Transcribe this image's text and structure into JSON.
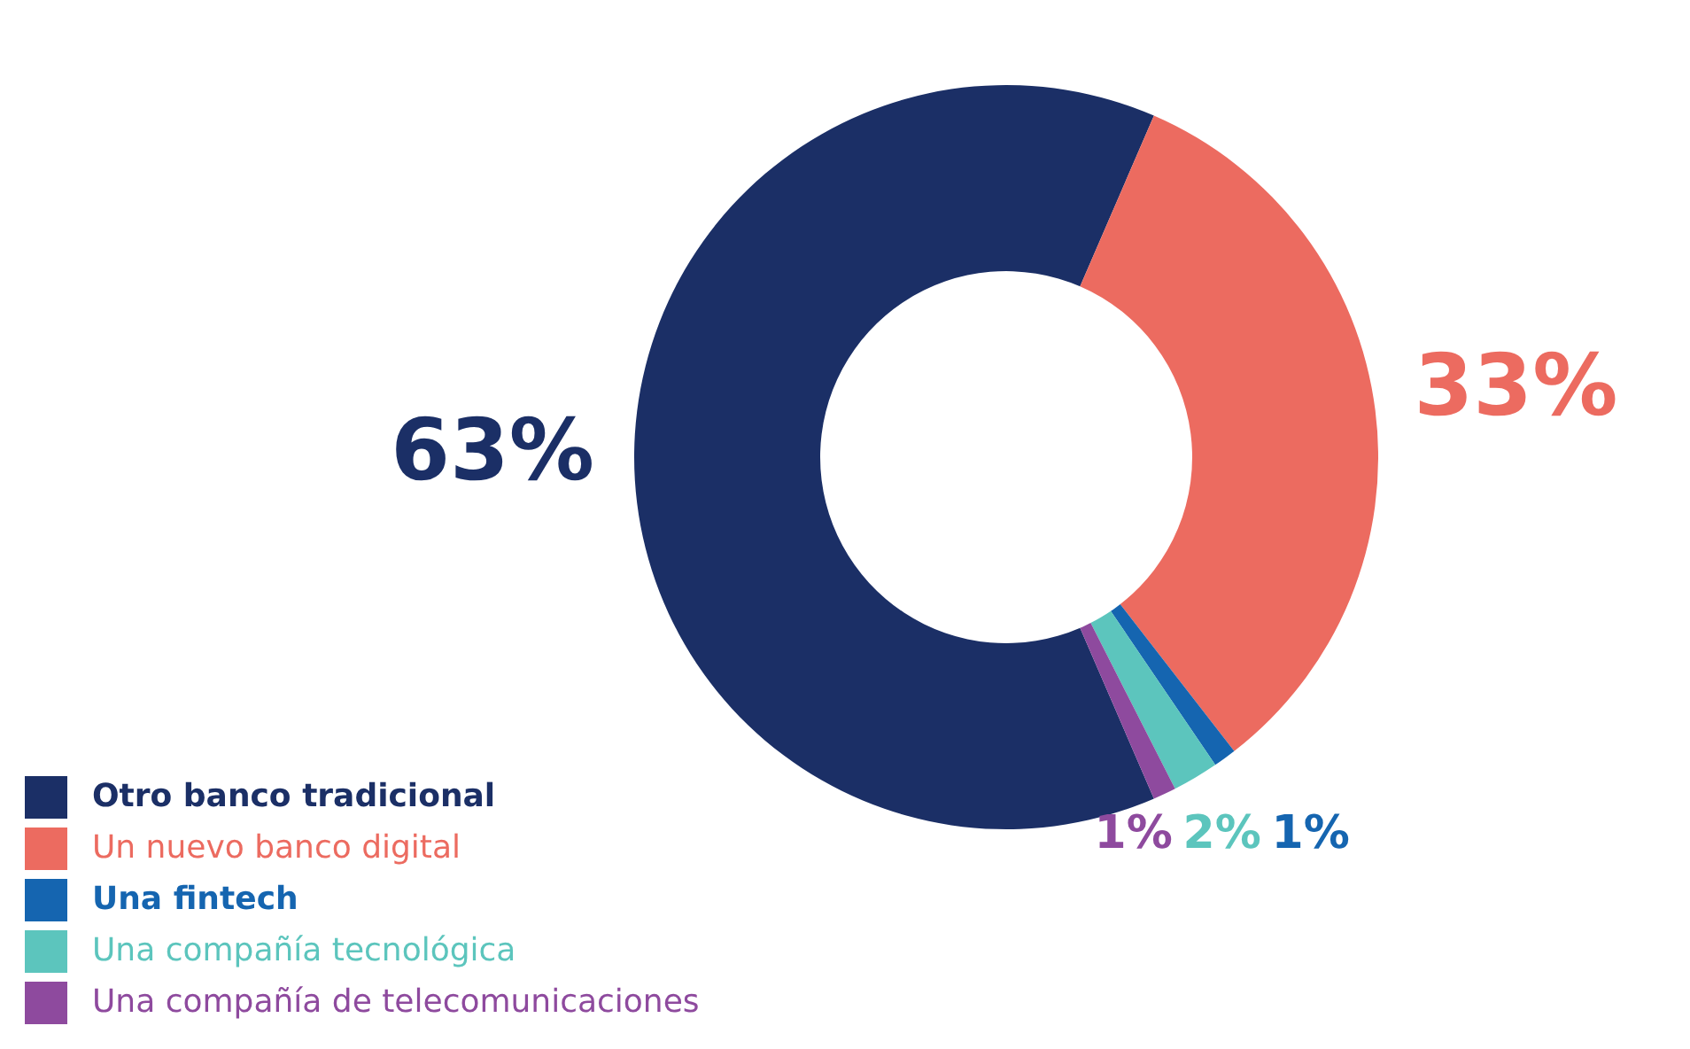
{
  "chart_data": {
    "type": "donut",
    "categories": [
      "Otro banco tradicional",
      "Un nuevo banco digital",
      "Una fintech",
      "Una compañía tecnológica",
      "Una compañía de telecomunicaciones"
    ],
    "values": [
      63,
      33,
      1,
      2,
      1
    ],
    "colors": [
      "#1b2f66",
      "#ec6b60",
      "#1565b0",
      "#5cc5bd",
      "#8e4a9e"
    ],
    "value_labels": [
      "63%",
      "33%",
      "1%",
      "2%",
      "1%"
    ],
    "legend": "bottom left"
  }
}
